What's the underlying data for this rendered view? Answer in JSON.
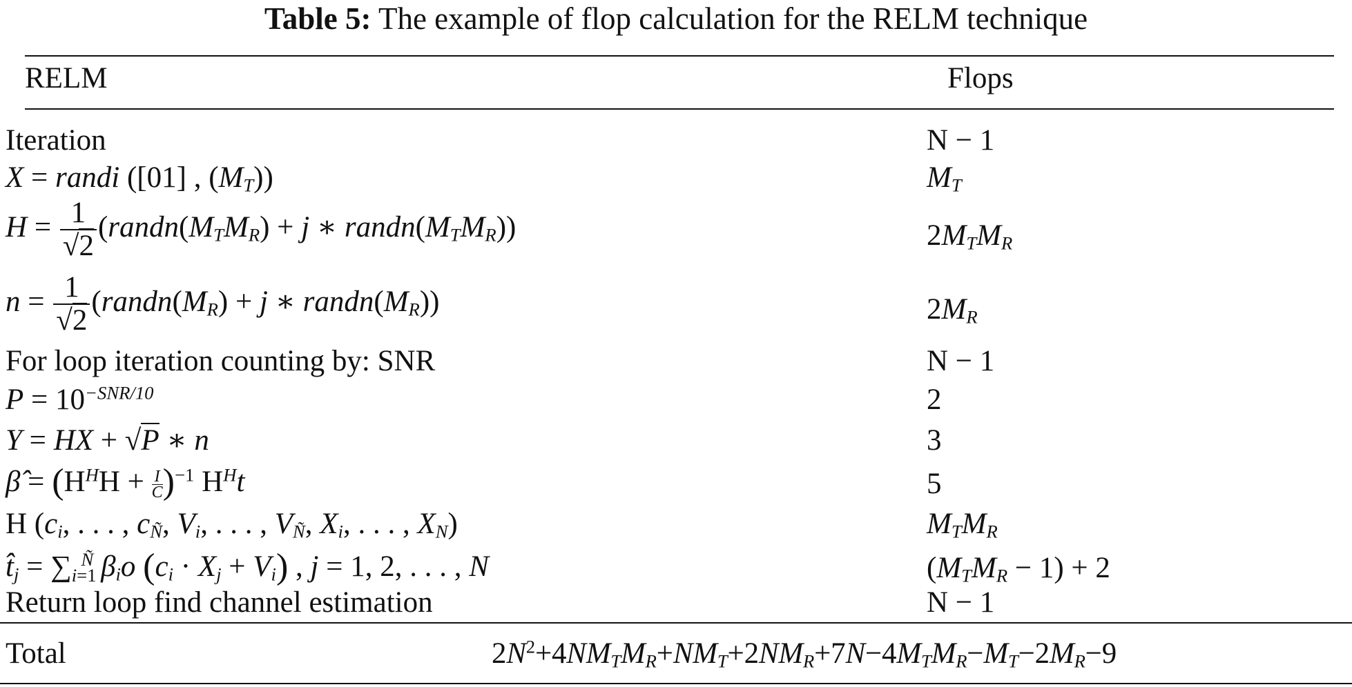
{
  "caption": {
    "label": "Table 5:",
    "text": "The example of flop calculation for the RELM technique"
  },
  "header": {
    "col1": "RELM",
    "col2": "Flops"
  },
  "rows": {
    "r1": {
      "left": "Iteration",
      "right": "N − 1"
    },
    "r2": {
      "left": "X = randi ([01] , (M_T))",
      "right": "M_T"
    },
    "r3": {
      "left": "H = 1/√2 (randn(M_T M_R) + j ∗ randn(M_T M_R))",
      "right": "2M_T M_R"
    },
    "r4": {
      "left": "n = 1/√2 (randn(M_R) + j ∗ randn(M_R))",
      "right": "2M_R"
    },
    "r5": {
      "left": "For loop iteration counting by: SNR",
      "right": "N − 1"
    },
    "r6": {
      "left": "P = 10^(−SNR/10)",
      "right": "2"
    },
    "r7": {
      "left": "Y = HX + √P ∗ n",
      "right": "3"
    },
    "r8": {
      "left": "β̂ = (H^H H + I/C)^−1 H^H t",
      "right": "5"
    },
    "r9": {
      "left": "H (c_i, . . . , c_Ñ, V_i, . . . , V_Ñ, X_i, . . . , X_N)",
      "right": "M_T M_R"
    },
    "r10": {
      "left": "t̂_j = ∑_{i=1}^{Ñ} β_i o (c_i · X_j + V_i) , j = 1, 2, . . . , N",
      "right": "(M_T M_R − 1) + 2"
    },
    "r11": {
      "left": "Return loop find channel estimation",
      "right": "N − 1"
    }
  },
  "total": {
    "label": "Total",
    "value": "2N^2 + 4NM_T M_R + NM_T + 2NM_R + 7N − 4M_T M_R − M_T − 2M_R − 9"
  }
}
